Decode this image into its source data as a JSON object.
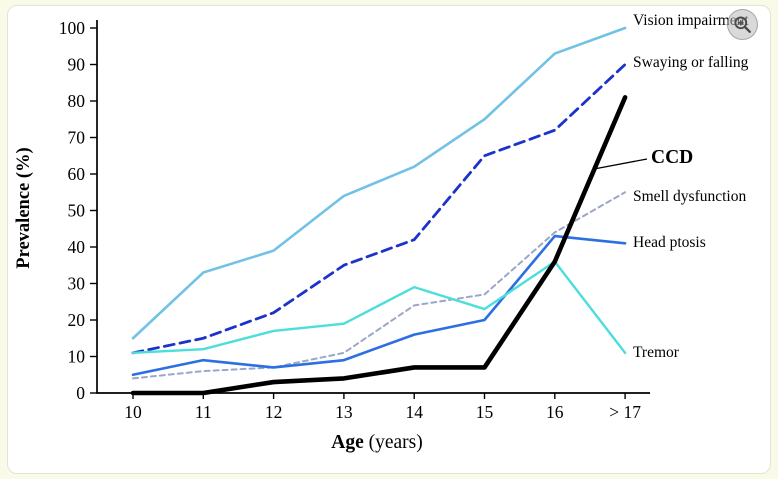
{
  "controls": {
    "zoom_label": "Zoom"
  },
  "chart_data": {
    "type": "line",
    "title": "",
    "xlabel": {
      "bold": "Age",
      "normal": " (years)"
    },
    "ylabel": "Prevalence (%)",
    "x_categories": [
      "10",
      "11",
      "12",
      "13",
      "14",
      "15",
      "16",
      "> 17"
    ],
    "ylim": [
      0,
      100
    ],
    "ytick_step": 10,
    "yticks": [
      0,
      10,
      20,
      30,
      40,
      50,
      60,
      70,
      80,
      90,
      100
    ],
    "grid": false,
    "legend_position": "right-annotations",
    "series": [
      {
        "name": "Vision impairment",
        "color": "#72C2E6",
        "style": "solid",
        "dash": null,
        "width": 2.6,
        "label_bold": false,
        "values": [
          15,
          33,
          39,
          54,
          62,
          75,
          93,
          100
        ]
      },
      {
        "name": "Swaying or falling",
        "color": "#1C33CB",
        "style": "dashed",
        "dash": "10 6",
        "width": 2.8,
        "label_bold": false,
        "values": [
          11,
          15,
          22,
          35,
          42,
          65,
          72,
          90
        ]
      },
      {
        "name": "Smell dysfunction",
        "color": "#9BA6C8",
        "style": "dashed",
        "dash": "5 4",
        "width": 2.0,
        "label_bold": false,
        "values": [
          4,
          6,
          7,
          11,
          24,
          27,
          44,
          55
        ]
      },
      {
        "name": "Head ptosis",
        "color": "#2C6FE2",
        "style": "solid",
        "dash": null,
        "width": 2.6,
        "label_bold": false,
        "values": [
          5,
          9,
          7,
          9,
          16,
          20,
          43,
          41
        ]
      },
      {
        "name": "Tremor",
        "color": "#4CDEDC",
        "style": "solid",
        "dash": null,
        "width": 2.4,
        "label_bold": false,
        "values": [
          11,
          12,
          17,
          19,
          29,
          23,
          36,
          11
        ]
      },
      {
        "name": "CCD",
        "color": "#000000",
        "style": "solid",
        "dash": null,
        "width": 4.6,
        "label_bold": true,
        "values": [
          0,
          0,
          3,
          4,
          7,
          7,
          36,
          81
        ]
      }
    ],
    "annotations": [
      {
        "text": "Vision impairment",
        "emphasis": false
      },
      {
        "text": "Swaying or falling",
        "emphasis": false
      },
      {
        "text": "CCD",
        "emphasis": true,
        "has_pointer_line": true
      },
      {
        "text": "Smell dysfunction",
        "emphasis": false
      },
      {
        "text": "Head ptosis",
        "emphasis": false
      },
      {
        "text": "Tremor",
        "emphasis": false
      }
    ]
  }
}
